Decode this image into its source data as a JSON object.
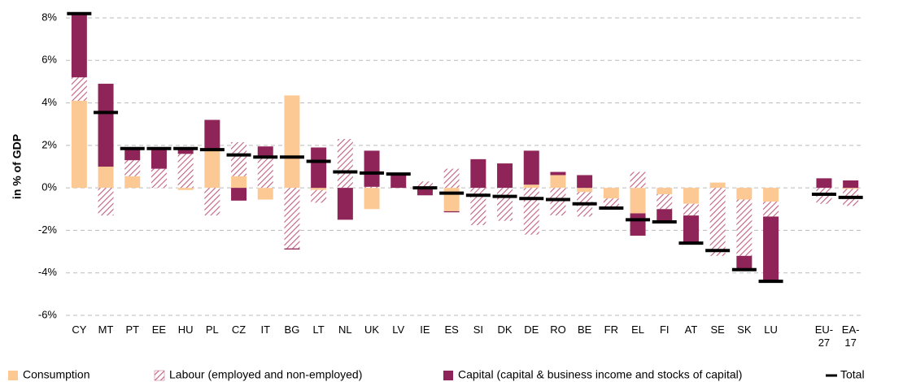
{
  "chart_data": {
    "type": "stacked_bar",
    "y_label": "in % of GDP",
    "categories": [
      "CY",
      "MT",
      "PT",
      "EE",
      "HU",
      "PL",
      "CZ",
      "IT",
      "BG",
      "LT",
      "NL",
      "UK",
      "LV",
      "IE",
      "ES",
      "SI",
      "DK",
      "DE",
      "RO",
      "BE",
      "FR",
      "EL",
      "FI",
      "AT",
      "SE",
      "SK",
      "LU",
      null,
      "EU-27",
      "EA-17"
    ],
    "series": [
      {
        "name": "Consumption",
        "color": "#fcc995",
        "fill": "solid",
        "values": [
          4.1,
          1.0,
          0.55,
          0,
          -0.1,
          1.85,
          0.55,
          -0.55,
          4.35,
          -0.1,
          0,
          -1.0,
          0,
          0,
          -1.1,
          0,
          0,
          0.15,
          0.6,
          -0.2,
          -0.5,
          -1.2,
          -0.3,
          -0.75,
          0.25,
          -0.55,
          -0.65,
          null,
          0,
          -0.05
        ]
      },
      {
        "name": "Labour (employed and non-employed)",
        "color": "#c0607f",
        "fill": "hatch",
        "values": [
          1.1,
          -1.3,
          0.75,
          0.9,
          1.6,
          -1.3,
          1.6,
          1.45,
          -2.85,
          -0.6,
          2.3,
          0.05,
          0,
          0.3,
          0.9,
          -1.75,
          -1.55,
          -2.2,
          -1.3,
          -1.15,
          -0.45,
          0.75,
          -0.7,
          -0.55,
          -3.2,
          -2.65,
          -0.7,
          null,
          -0.75,
          -0.8
        ]
      },
      {
        "name": "Capital (capital & business income and stocks of capital)",
        "color": "#8e2457",
        "fill": "solid",
        "values": [
          3.0,
          3.9,
          0.6,
          1.0,
          0.3,
          1.35,
          -0.6,
          0.5,
          -0.05,
          1.9,
          -1.5,
          1.7,
          0.65,
          -0.35,
          -0.05,
          1.35,
          1.15,
          1.6,
          0.15,
          0.6,
          0,
          -1.05,
          -0.6,
          -1.3,
          0,
          -0.6,
          -3.0,
          null,
          0.45,
          0.35
        ]
      },
      {
        "name": "Total",
        "color": "#000000",
        "fill": "dash",
        "values": [
          8.2,
          3.55,
          1.85,
          1.85,
          1.85,
          1.8,
          1.55,
          1.45,
          1.45,
          1.25,
          0.75,
          0.7,
          0.65,
          0.0,
          -0.25,
          -0.35,
          -0.4,
          -0.5,
          -0.55,
          -0.75,
          -0.95,
          -1.5,
          -1.6,
          -2.6,
          -2.95,
          -3.85,
          -4.4,
          null,
          -0.3,
          -0.45
        ]
      }
    ],
    "ylim": [
      -6,
      8
    ],
    "yticks": [
      {
        "value": -6,
        "label": "-6%"
      },
      {
        "value": -4,
        "label": "-4%"
      },
      {
        "value": -2,
        "label": "-2%"
      },
      {
        "value": 0,
        "label": "0%"
      },
      {
        "value": 2,
        "label": "2%"
      },
      {
        "value": 4,
        "label": "4%"
      },
      {
        "value": 6,
        "label": "6%"
      },
      {
        "value": 8,
        "label": "8%"
      }
    ],
    "grid": true
  }
}
